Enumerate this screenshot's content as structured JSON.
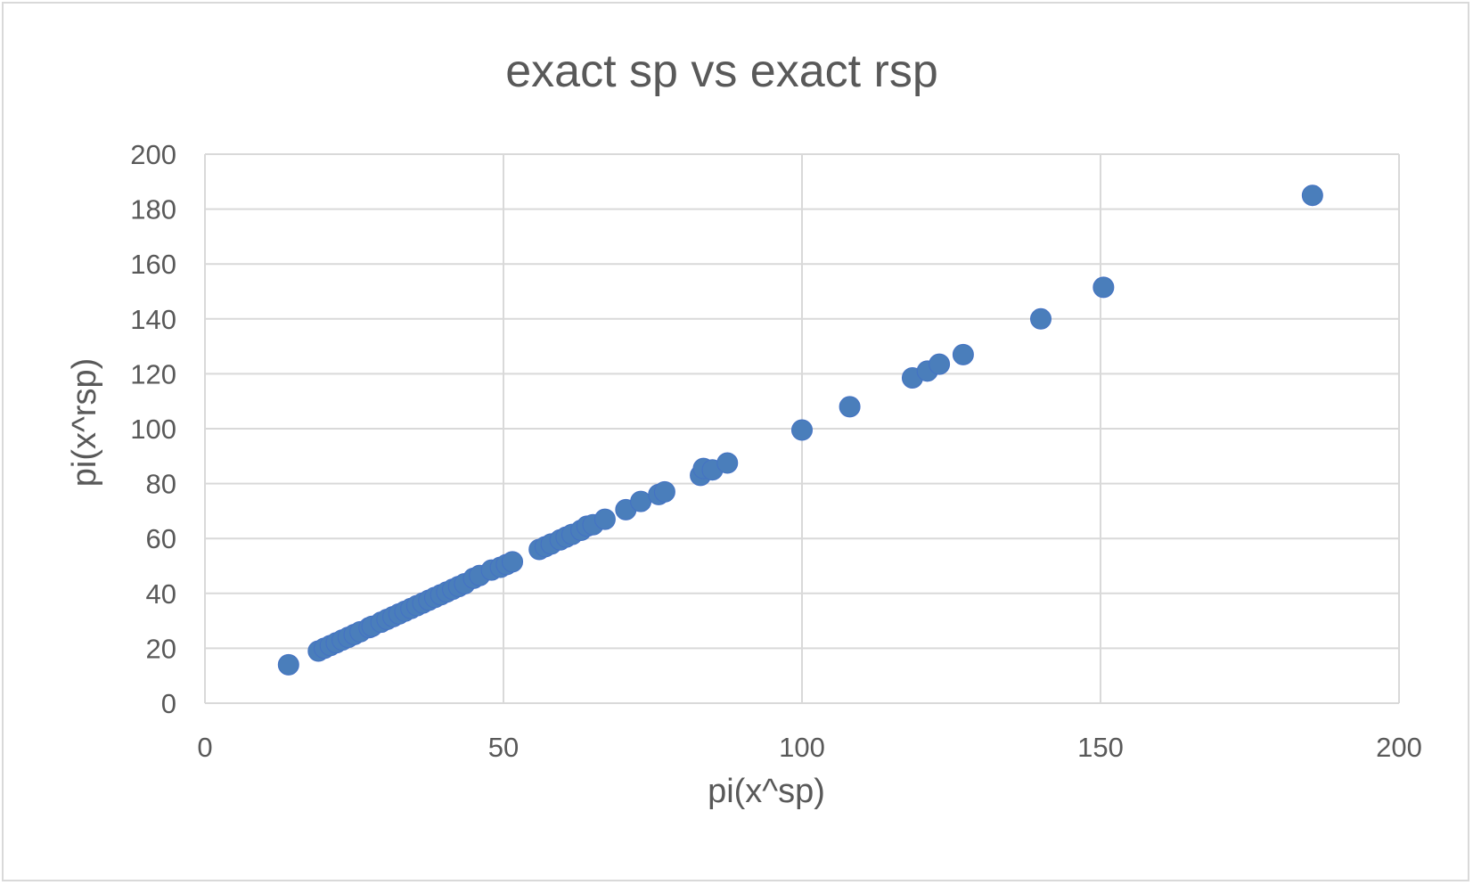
{
  "chart_data": {
    "type": "scatter",
    "title": "exact sp vs exact rsp",
    "xlabel": "pi(x^sp)",
    "ylabel": "pi(x^rsp)",
    "xlim": [
      0,
      200
    ],
    "ylim": [
      0,
      200
    ],
    "x_ticks": [
      0,
      50,
      100,
      150,
      200
    ],
    "y_ticks": [
      0,
      20,
      40,
      60,
      80,
      100,
      120,
      140,
      160,
      180,
      200
    ],
    "grid": true,
    "legend": "none",
    "marker_color": "#4a7ebb",
    "series": [
      {
        "points": [
          [
            14,
            14
          ],
          [
            19,
            19
          ],
          [
            20,
            20
          ],
          [
            21,
            21
          ],
          [
            22,
            22
          ],
          [
            23,
            23
          ],
          [
            24,
            24
          ],
          [
            25,
            25
          ],
          [
            26,
            26
          ],
          [
            27.5,
            27.5
          ],
          [
            28,
            28
          ],
          [
            29.5,
            29.5
          ],
          [
            30.5,
            30.5
          ],
          [
            31.5,
            31.5
          ],
          [
            32.5,
            32.5
          ],
          [
            33.5,
            33.5
          ],
          [
            34.5,
            34.5
          ],
          [
            35.5,
            35.5
          ],
          [
            36.5,
            36.5
          ],
          [
            37.5,
            37.5
          ],
          [
            38.5,
            38.5
          ],
          [
            39.5,
            39.5
          ],
          [
            40.5,
            40.5
          ],
          [
            41.5,
            41.5
          ],
          [
            42.5,
            42.5
          ],
          [
            43.5,
            43.5
          ],
          [
            45,
            45.5
          ],
          [
            46,
            46.5
          ],
          [
            48,
            48.5
          ],
          [
            49.5,
            49.5
          ],
          [
            50.5,
            50.5
          ],
          [
            51.5,
            51.5
          ],
          [
            56,
            56
          ],
          [
            57,
            57
          ],
          [
            58,
            58
          ],
          [
            59.5,
            59.5
          ],
          [
            60.5,
            60.5
          ],
          [
            61.5,
            61.5
          ],
          [
            63,
            63
          ],
          [
            64,
            64.5
          ],
          [
            65,
            65
          ],
          [
            67,
            67
          ],
          [
            70.5,
            70.5
          ],
          [
            73,
            73.5
          ],
          [
            76,
            76
          ],
          [
            77,
            77
          ],
          [
            83,
            83
          ],
          [
            83.5,
            85.5
          ],
          [
            85,
            85
          ],
          [
            87.5,
            87.5
          ],
          [
            100,
            99.5
          ],
          [
            108,
            108
          ],
          [
            118.5,
            118.5
          ],
          [
            121,
            121
          ],
          [
            123,
            123.5
          ],
          [
            127,
            127
          ],
          [
            140,
            140
          ],
          [
            150.5,
            151.5
          ],
          [
            185.5,
            185
          ]
        ]
      }
    ]
  }
}
